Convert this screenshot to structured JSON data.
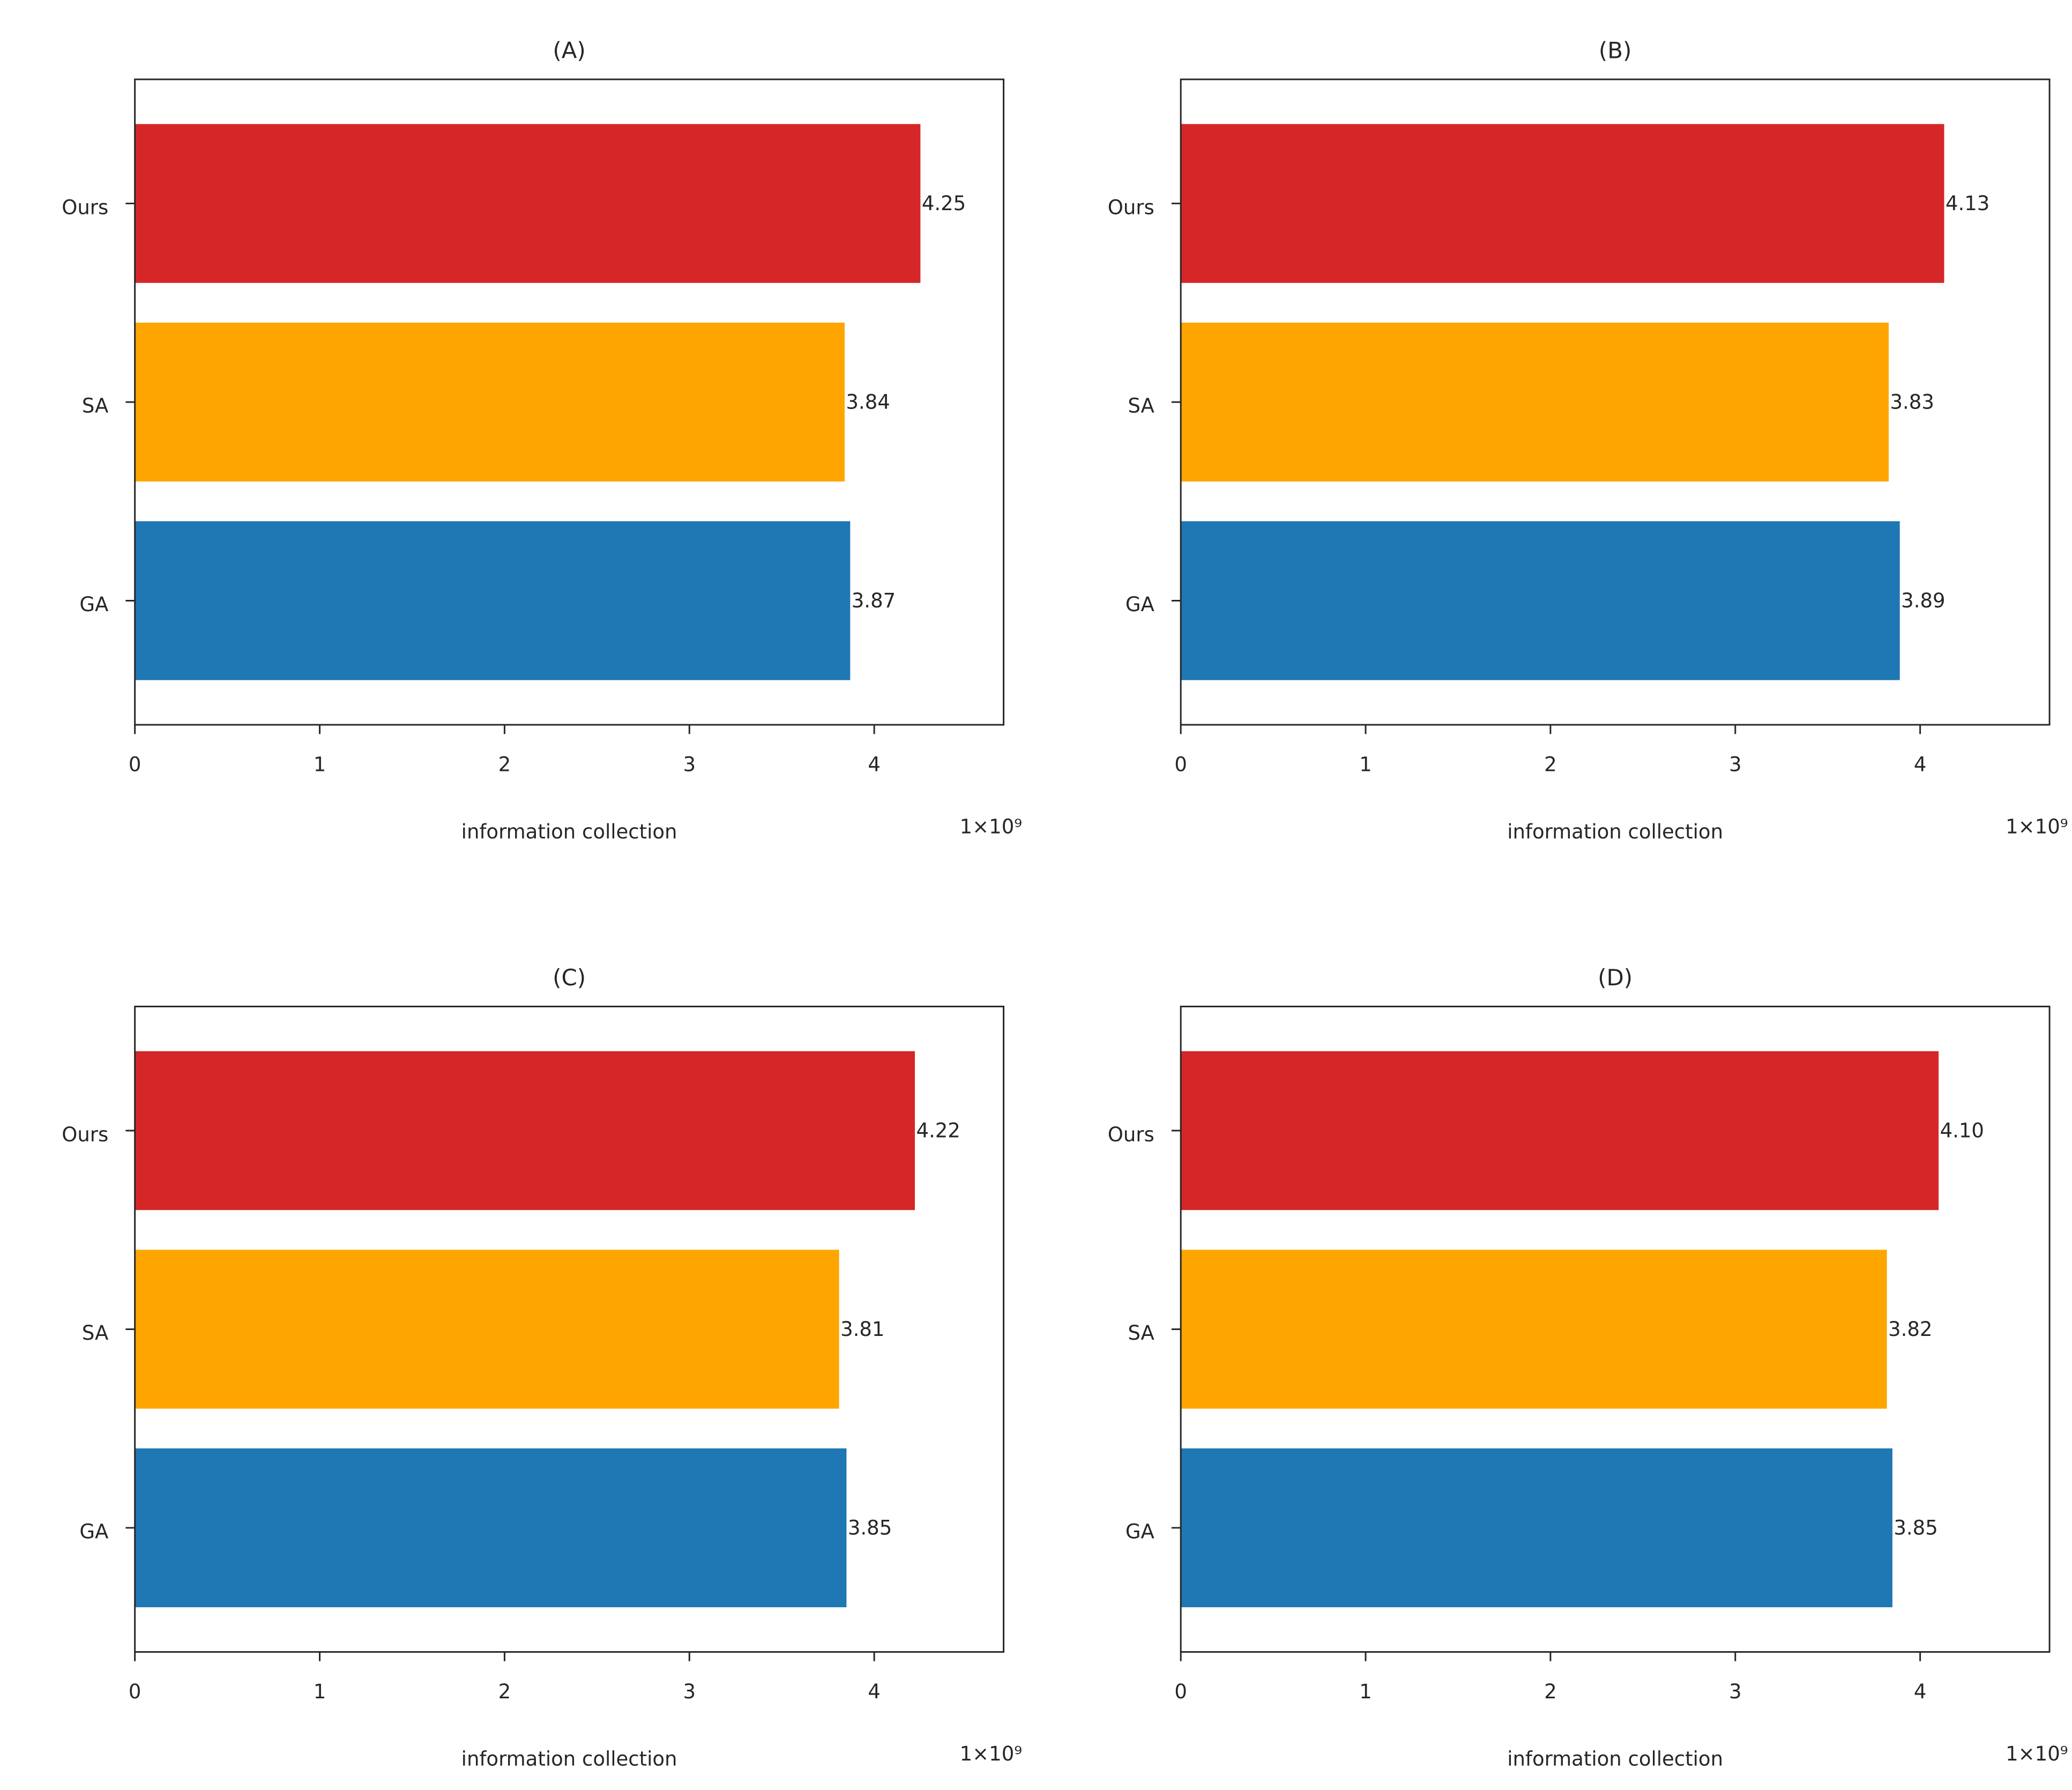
{
  "chart_data": [
    {
      "type": "bar",
      "orientation": "horizontal",
      "title": "(A)",
      "categories": [
        "GA",
        "SA",
        "Ours"
      ],
      "values": [
        3.87,
        3.84,
        4.25
      ],
      "value_labels": [
        "3.87",
        "3.84",
        "4.25"
      ],
      "bar_colors": [
        "#1f77b4",
        "#ffa500",
        "#d62728"
      ],
      "xlabel": "information collection",
      "scale_label": "1×10⁹",
      "xlim": [
        0,
        4.7
      ],
      "xticks": [
        0,
        1,
        2,
        3,
        4
      ],
      "xtick_labels": [
        "0",
        "1",
        "2",
        "3",
        "4"
      ],
      "grid": false
    },
    {
      "type": "bar",
      "orientation": "horizontal",
      "title": "(B)",
      "categories": [
        "GA",
        "SA",
        "Ours"
      ],
      "values": [
        3.89,
        3.83,
        4.13
      ],
      "value_labels": [
        "3.89",
        "3.83",
        "4.13"
      ],
      "bar_colors": [
        "#1f77b4",
        "#ffa500",
        "#d62728"
      ],
      "xlabel": "information collection",
      "scale_label": "1×10⁹",
      "xlim": [
        0,
        4.7
      ],
      "xticks": [
        0,
        1,
        2,
        3,
        4
      ],
      "xtick_labels": [
        "0",
        "1",
        "2",
        "3",
        "4"
      ],
      "grid": false
    },
    {
      "type": "bar",
      "orientation": "horizontal",
      "title": "(C)",
      "categories": [
        "GA",
        "SA",
        "Ours"
      ],
      "values": [
        3.85,
        3.81,
        4.22
      ],
      "value_labels": [
        "3.85",
        "3.81",
        "4.22"
      ],
      "bar_colors": [
        "#1f77b4",
        "#ffa500",
        "#d62728"
      ],
      "xlabel": "information collection",
      "scale_label": "1×10⁹",
      "xlim": [
        0,
        4.7
      ],
      "xticks": [
        0,
        1,
        2,
        3,
        4
      ],
      "xtick_labels": [
        "0",
        "1",
        "2",
        "3",
        "4"
      ],
      "grid": false
    },
    {
      "type": "bar",
      "orientation": "horizontal",
      "title": "(D)",
      "categories": [
        "GA",
        "SA",
        "Ours"
      ],
      "values": [
        3.85,
        3.82,
        4.1
      ],
      "value_labels": [
        "3.85",
        "3.82",
        "4.10"
      ],
      "bar_colors": [
        "#1f77b4",
        "#ffa500",
        "#d62728"
      ],
      "xlabel": "information collection",
      "scale_label": "1×10⁹",
      "xlim": [
        0,
        4.7
      ],
      "xticks": [
        0,
        1,
        2,
        3,
        4
      ],
      "xtick_labels": [
        "0",
        "1",
        "2",
        "3",
        "4"
      ],
      "grid": false
    }
  ]
}
